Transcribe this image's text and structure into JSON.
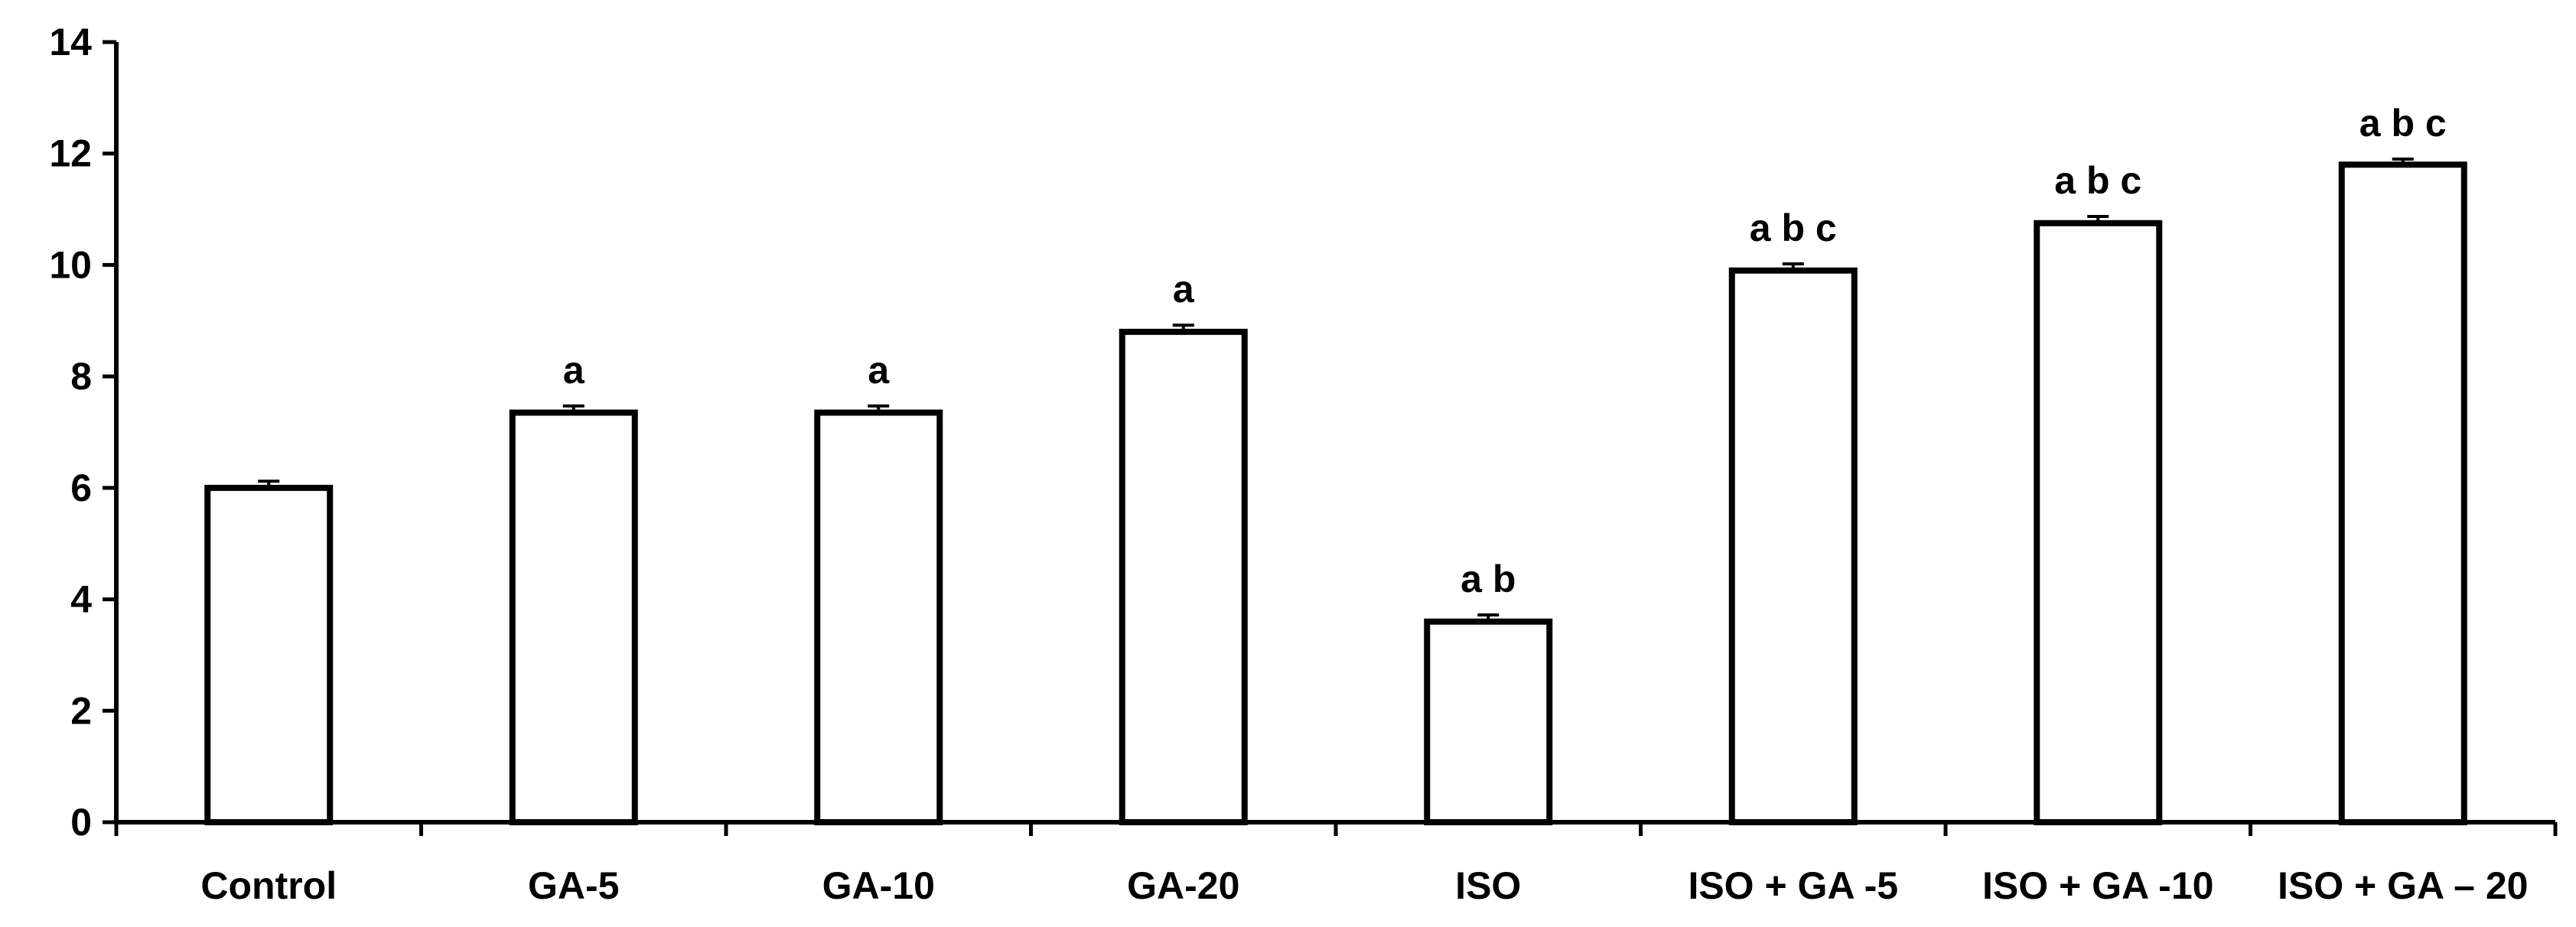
{
  "chart_data": {
    "type": "bar",
    "categories": [
      "Control",
      "GA-5",
      "GA-10",
      "GA-20",
      "ISO",
      "ISO + GA -5",
      "ISO + GA -10",
      "ISO + GA – 20"
    ],
    "values": [
      6.0,
      7.35,
      7.35,
      8.8,
      3.6,
      9.9,
      10.75,
      11.8
    ],
    "errors": [
      0.12,
      0.12,
      0.12,
      0.12,
      0.12,
      0.12,
      0.12,
      0.1
    ],
    "significance": [
      "",
      "a",
      "a",
      "a",
      "a b",
      "a b c",
      "a b c",
      "a b c"
    ],
    "title": "",
    "xlabel": "",
    "ylabel": "",
    "ylim": [
      0,
      14
    ],
    "yticks": [
      0,
      2,
      4,
      6,
      8,
      10,
      12,
      14
    ],
    "grid": false,
    "bar_fill": "#ffffff",
    "bar_stroke": "#000000"
  }
}
